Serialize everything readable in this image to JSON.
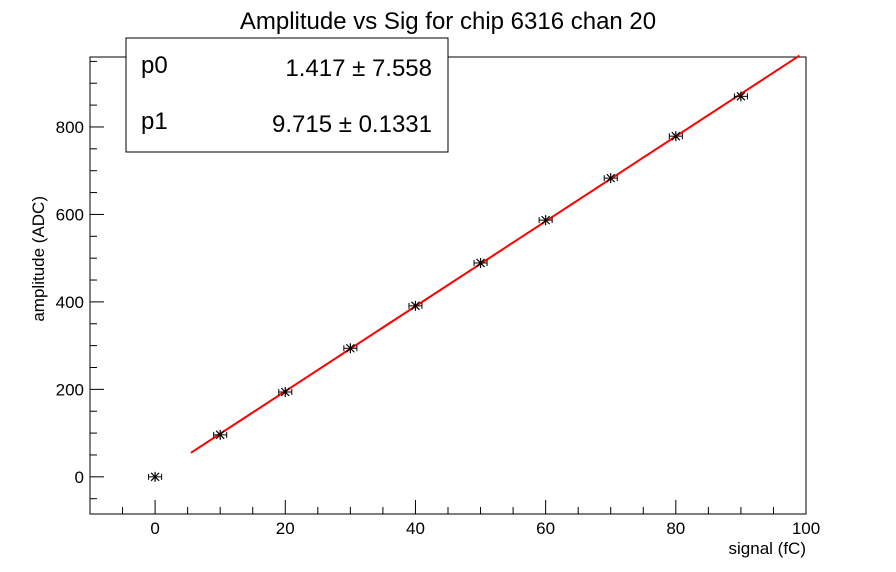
{
  "chart_data": {
    "type": "scatter",
    "title": "Amplitude vs Sig for chip 6316 chan 20",
    "xlabel": "signal (fC)",
    "ylabel": "amplitude (ADC)",
    "xlim": [
      -10,
      100
    ],
    "ylim": [
      -85,
      960
    ],
    "xticks": [
      0,
      20,
      40,
      60,
      80,
      100
    ],
    "yticks": [
      0,
      200,
      400,
      600,
      800
    ],
    "grid": false,
    "points": {
      "x": [
        0,
        10,
        20,
        30,
        40,
        50,
        60,
        70,
        80,
        90
      ],
      "y": [
        0,
        96,
        194,
        294,
        391,
        489,
        587,
        683,
        779,
        870
      ],
      "xerr": 1,
      "marker_color": "#000000"
    },
    "fit": {
      "p0": 1.417,
      "p1": 9.715,
      "x_range": [
        5.5,
        99
      ],
      "color": "#ff0000"
    },
    "stats_box": {
      "p0_label": "p0",
      "p0_value": "1.417 ± 7.558",
      "p1_label": "p1",
      "p1_value": "9.715 ± 0.1331"
    }
  }
}
